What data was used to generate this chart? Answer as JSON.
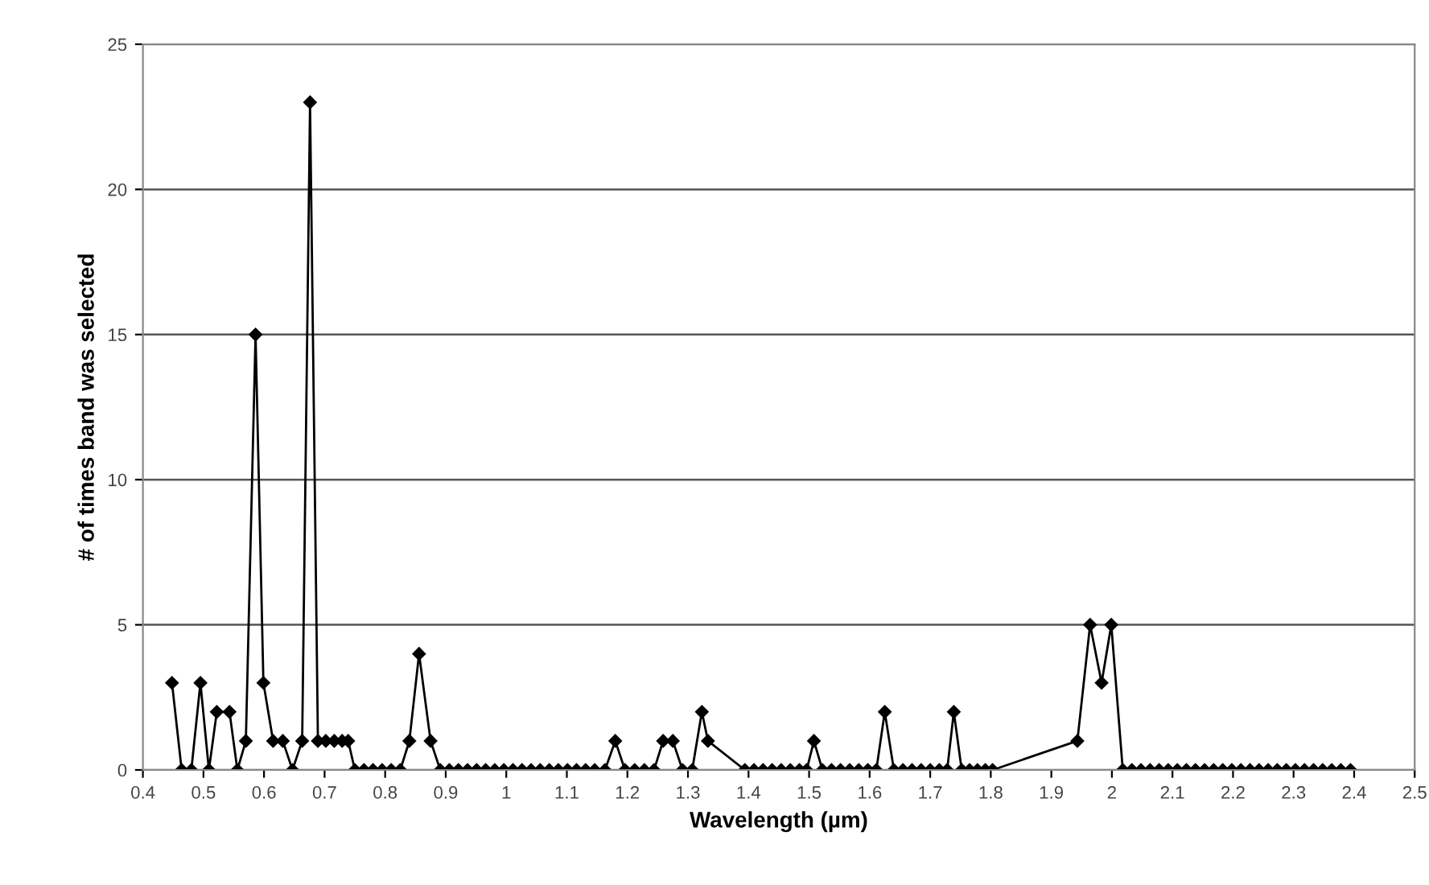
{
  "chart_data": {
    "type": "line",
    "xlabel": "Wavelength (µm)",
    "ylabel": "# of times band was selected",
    "series": [
      {
        "color": "#000000",
        "x": [
          0.448,
          0.464,
          0.48,
          0.495,
          0.509,
          0.522,
          0.543,
          0.556,
          0.57,
          0.586,
          0.599,
          0.615,
          0.631,
          0.647,
          0.663,
          0.676,
          0.689,
          0.702,
          0.716,
          0.729,
          0.739,
          0.75,
          0.765,
          0.78,
          0.795,
          0.81,
          0.825,
          0.84,
          0.856,
          0.875,
          0.891,
          0.906,
          0.921,
          0.936,
          0.951,
          0.966,
          0.981,
          0.996,
          1.011,
          1.026,
          1.041,
          1.056,
          1.071,
          1.086,
          1.101,
          1.116,
          1.131,
          1.146,
          1.163,
          1.18,
          1.196,
          1.212,
          1.228,
          1.244,
          1.259,
          1.275,
          1.291,
          1.307,
          1.323,
          1.333,
          1.394,
          1.409,
          1.424,
          1.439,
          1.454,
          1.469,
          1.484,
          1.496,
          1.508,
          1.522,
          1.537,
          1.552,
          1.567,
          1.582,
          1.597,
          1.611,
          1.625,
          1.64,
          1.655,
          1.67,
          1.685,
          1.7,
          1.715,
          1.728,
          1.739,
          1.752,
          1.765,
          1.778,
          1.791,
          1.803,
          1.943,
          1.964,
          1.983,
          1.999,
          2.018,
          2.033,
          2.048,
          2.063,
          2.078,
          2.093,
          2.108,
          2.123,
          2.138,
          2.153,
          2.168,
          2.183,
          2.198,
          2.213,
          2.228,
          2.243,
          2.258,
          2.273,
          2.288,
          2.303,
          2.318,
          2.333,
          2.348,
          2.363,
          2.378,
          2.394
        ],
        "values": [
          3,
          0,
          0,
          3,
          0,
          2,
          2,
          0,
          1,
          15,
          3,
          1,
          1,
          0,
          1,
          23,
          1,
          1,
          1,
          1,
          1,
          0,
          0,
          0,
          0,
          0,
          0,
          1,
          4,
          1,
          0,
          0,
          0,
          0,
          0,
          0,
          0,
          0,
          0,
          0,
          0,
          0,
          0,
          0,
          0,
          0,
          0,
          0,
          0,
          1,
          0,
          0,
          0,
          0,
          1,
          1,
          0,
          0,
          2,
          1,
          0,
          0,
          0,
          0,
          0,
          0,
          0,
          0,
          1,
          0,
          0,
          0,
          0,
          0,
          0,
          0,
          2,
          0,
          0,
          0,
          0,
          0,
          0,
          0,
          2,
          0,
          0,
          0,
          0,
          0,
          1,
          5,
          3,
          5,
          0,
          0,
          0,
          0,
          0,
          0,
          0,
          0,
          0,
          0,
          0,
          0,
          0,
          0,
          0,
          0,
          0,
          0,
          0,
          0,
          0,
          0,
          0,
          0,
          0,
          0
        ]
      }
    ],
    "xlim": [
      0.4,
      2.5
    ],
    "xticks": [
      0.4,
      0.5,
      0.6,
      0.7,
      0.8,
      0.9,
      1,
      1.1,
      1.2,
      1.3,
      1.4,
      1.5,
      1.6,
      1.7,
      1.8,
      1.9,
      2,
      2.1,
      2.2,
      2.3,
      2.4,
      2.5
    ],
    "ylim": [
      0,
      25
    ],
    "yticks": [
      0,
      5,
      10,
      15,
      20,
      25
    ],
    "grid": "y",
    "marker": "diamond",
    "line_style": "solid"
  }
}
